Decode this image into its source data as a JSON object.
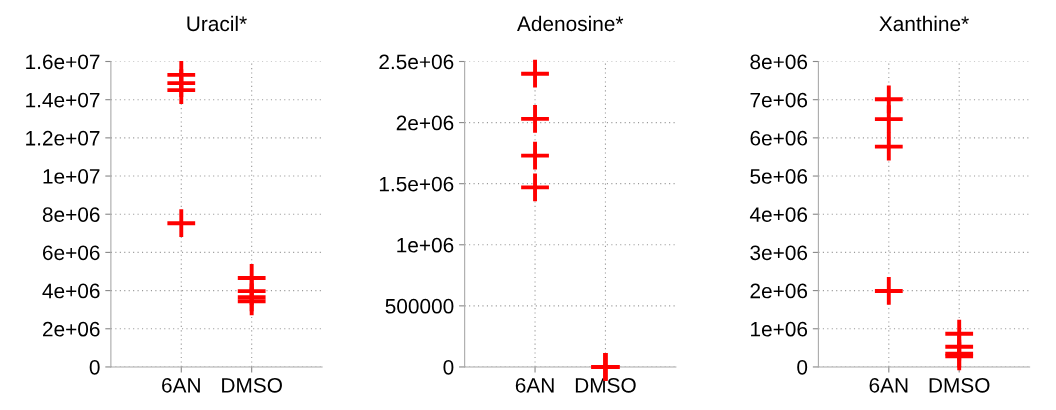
{
  "chart_data": [
    {
      "type": "scatter",
      "title": "Uracil*",
      "categories": [
        "6AN",
        "DMSO"
      ],
      "marker": "cross",
      "grid": true,
      "series": [
        {
          "color": "#ff0000",
          "x": [
            "6AN",
            "6AN",
            "6AN",
            "6AN",
            "DMSO",
            "DMSO",
            "DMSO",
            "DMSO"
          ],
          "values": [
            15300000,
            14870000,
            14500000,
            7530000,
            4660000,
            3970000,
            3650000,
            3440000
          ]
        }
      ],
      "ylim": [
        0,
        16000000
      ],
      "yticks": [
        {
          "value": 0,
          "label": "0"
        },
        {
          "value": 2000000,
          "label": "2e+06"
        },
        {
          "value": 4000000,
          "label": "4e+06"
        },
        {
          "value": 6000000,
          "label": "6e+06"
        },
        {
          "value": 8000000,
          "label": "8e+06"
        },
        {
          "value": 10000000,
          "label": "1e+07"
        },
        {
          "value": 12000000,
          "label": "1.2e+07"
        },
        {
          "value": 14000000,
          "label": "1.4e+07"
        },
        {
          "value": 16000000,
          "label": "1.6e+07"
        }
      ]
    },
    {
      "type": "scatter",
      "title": "Adenosine*",
      "categories": [
        "6AN",
        "DMSO"
      ],
      "marker": "cross",
      "grid": true,
      "series": [
        {
          "color": "#ff0000",
          "x": [
            "6AN",
            "6AN",
            "6AN",
            "6AN",
            "DMSO",
            "DMSO",
            "DMSO",
            "DMSO"
          ],
          "values": [
            2400000,
            2030000,
            1730000,
            1470000,
            0,
            0,
            0,
            0
          ]
        }
      ],
      "ylim": [
        0,
        2500000
      ],
      "yticks": [
        {
          "value": 0,
          "label": "0"
        },
        {
          "value": 500000,
          "label": "500000"
        },
        {
          "value": 1000000,
          "label": "1e+06"
        },
        {
          "value": 1500000,
          "label": "1.5e+06"
        },
        {
          "value": 2000000,
          "label": "2e+06"
        },
        {
          "value": 2500000,
          "label": "2.5e+06"
        }
      ]
    },
    {
      "type": "scatter",
      "title": "Xanthine*",
      "categories": [
        "6AN",
        "DMSO"
      ],
      "marker": "cross",
      "grid": true,
      "series": [
        {
          "color": "#ff0000",
          "x": [
            "6AN",
            "6AN",
            "6AN",
            "6AN",
            "DMSO",
            "DMSO",
            "DMSO",
            "DMSO"
          ],
          "values": [
            7010000,
            6490000,
            5770000,
            1990000,
            870000,
            530000,
            350000,
            280000
          ]
        }
      ],
      "ylim": [
        0,
        8000000
      ],
      "yticks": [
        {
          "value": 0,
          "label": "0"
        },
        {
          "value": 1000000,
          "label": "1e+06"
        },
        {
          "value": 2000000,
          "label": "2e+06"
        },
        {
          "value": 3000000,
          "label": "3e+06"
        },
        {
          "value": 4000000,
          "label": "4e+06"
        },
        {
          "value": 5000000,
          "label": "5e+06"
        },
        {
          "value": 6000000,
          "label": "6e+06"
        },
        {
          "value": 7000000,
          "label": "7e+06"
        },
        {
          "value": 8000000,
          "label": "8e+06"
        }
      ]
    }
  ]
}
